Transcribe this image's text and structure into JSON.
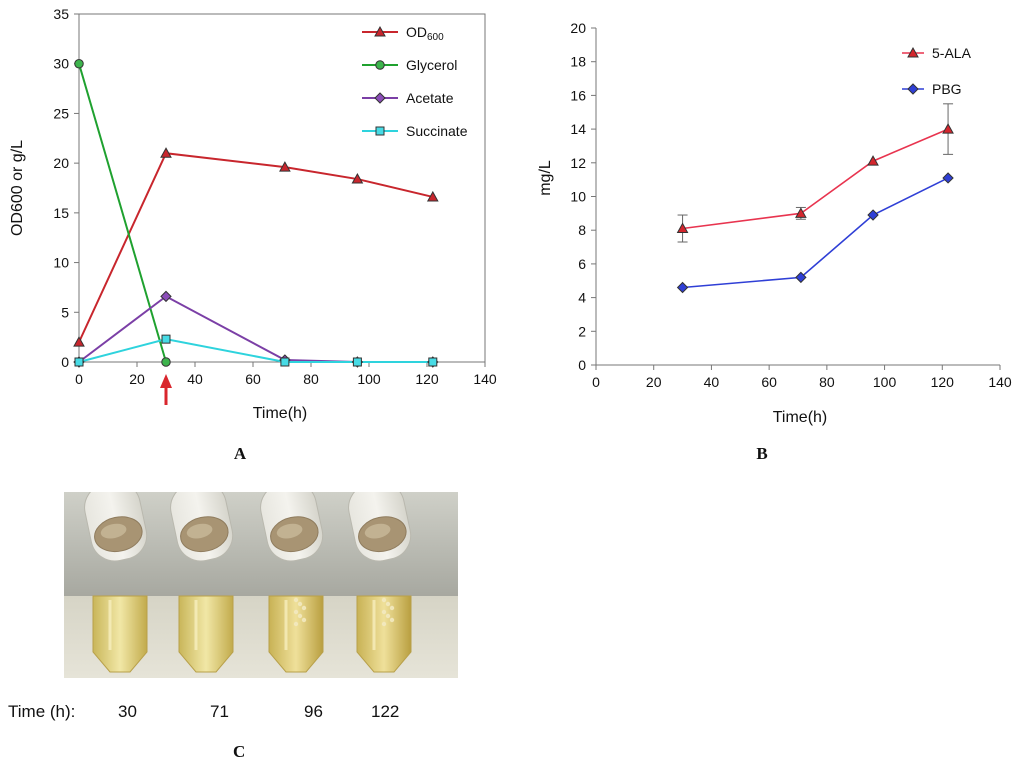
{
  "chart_data": [
    {
      "type": "line",
      "panel_label": "A",
      "xlabel": "Time(h)",
      "ylabel": "OD600 or g/L",
      "xlim": [
        0,
        140
      ],
      "ylim": [
        0,
        35
      ],
      "xticks": [
        0,
        20,
        40,
        60,
        80,
        100,
        120,
        140
      ],
      "yticks": [
        0,
        5,
        10,
        15,
        20,
        25,
        30,
        35
      ],
      "legend_position": "top-right",
      "annotation": {
        "type": "arrow",
        "x": 30,
        "color": "#d9262d"
      },
      "series": [
        {
          "name": "OD",
          "name_sub": "600",
          "marker": "triangle",
          "color": "#c8262d",
          "fill": "#c8262d",
          "x": [
            0,
            30,
            71,
            96,
            122
          ],
          "y": [
            2,
            21,
            19.6,
            18.4,
            16.6
          ]
        },
        {
          "name": "Glycerol",
          "marker": "circle",
          "color": "#1fa12f",
          "fill": "#3db44d",
          "x": [
            0,
            30
          ],
          "y": [
            30,
            0
          ]
        },
        {
          "name": "Acetate",
          "marker": "diamond",
          "color": "#7b3fa6",
          "fill": "#8b4db8",
          "x": [
            0,
            30,
            71,
            96,
            122
          ],
          "y": [
            0,
            6.6,
            0.2,
            0,
            0
          ]
        },
        {
          "name": "Succinate",
          "marker": "square",
          "color": "#2ed3dd",
          "fill": "#47dbe5",
          "x": [
            0,
            30,
            71,
            96,
            122
          ],
          "y": [
            0,
            2.3,
            0,
            0,
            0
          ]
        }
      ]
    },
    {
      "type": "line",
      "panel_label": "B",
      "xlabel": "Time(h)",
      "ylabel": "mg/L",
      "xlim": [
        0,
        140
      ],
      "ylim": [
        0,
        20
      ],
      "xticks": [
        0,
        20,
        40,
        60,
        80,
        100,
        120,
        140
      ],
      "yticks": [
        0,
        2,
        4,
        6,
        8,
        10,
        12,
        14,
        16,
        18,
        20
      ],
      "legend_position": "top-right",
      "series": [
        {
          "name": "5-ALA",
          "marker": "triangle",
          "color": "#e8344f",
          "fill": "#d4262d",
          "x": [
            30,
            71,
            96,
            122
          ],
          "y": [
            8.1,
            9.0,
            12.1,
            14.0
          ],
          "err": [
            0.8,
            0.35,
            0,
            1.5
          ]
        },
        {
          "name": "PBG",
          "marker": "diamond",
          "color": "#2f3fd6",
          "fill": "#2f3fd6",
          "x": [
            30,
            71,
            96,
            122
          ],
          "y": [
            4.6,
            5.2,
            8.9,
            11.1
          ]
        }
      ]
    }
  ],
  "panel_c": {
    "panel_label": "C",
    "caption_label": "Time (h):",
    "times": [
      "30",
      "71",
      "96",
      "122"
    ]
  }
}
